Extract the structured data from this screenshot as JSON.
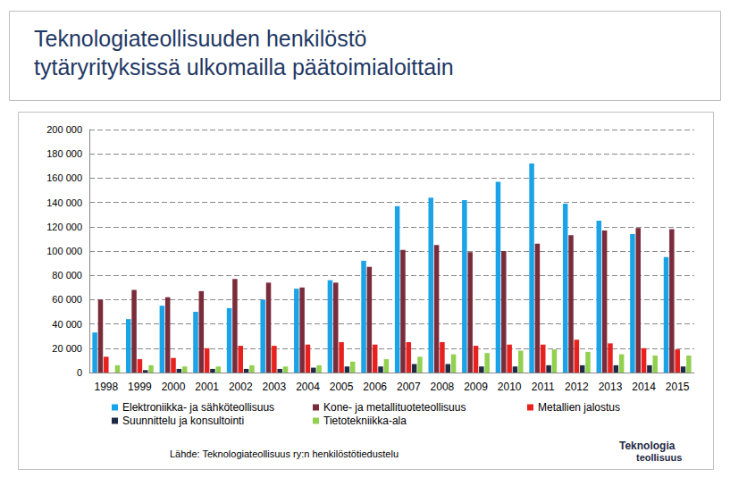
{
  "chart_data": {
    "type": "bar",
    "title": "Teknologiateollisuuden henkilöstö tytäryrityksissä ulkomailla päätoimialoittain",
    "source": "Lähde: Teknologiateollisuus ry:n henkilöstötiedustelu",
    "logo": [
      "Teknologia",
      "teollisuus"
    ],
    "categories": [
      "1998",
      "1999",
      "2000",
      "2001",
      "2002",
      "2003",
      "2004",
      "2005",
      "2006",
      "2007",
      "2008",
      "2009",
      "2010",
      "2011",
      "2012",
      "2013",
      "2014",
      "2015"
    ],
    "series": [
      {
        "name": "Elektroniikka- ja sähköteollisuus",
        "color": "#1aa3e6",
        "values": [
          33000,
          44000,
          55000,
          50000,
          53000,
          60000,
          69000,
          76000,
          92000,
          137000,
          144000,
          142000,
          157000,
          172000,
          139000,
          125000,
          114000,
          95000
        ]
      },
      {
        "name": "Kone- ja metallituoteteollisuus",
        "color": "#7b2c3a",
        "values": [
          60000,
          68000,
          62000,
          67000,
          77000,
          74000,
          70000,
          74000,
          87000,
          101000,
          105000,
          99000,
          100000,
          106000,
          113000,
          117000,
          119000,
          118000
        ]
      },
      {
        "name": "Metallien jalostus",
        "color": "#e8201e",
        "values": [
          13000,
          11000,
          12000,
          20000,
          22000,
          22000,
          23000,
          25000,
          23000,
          25000,
          25000,
          22000,
          23000,
          23000,
          27000,
          24000,
          20000,
          19000
        ]
      },
      {
        "name": "Suunnittelu ja konsultointi",
        "color": "#1f2a44",
        "values": [
          null,
          2000,
          3000,
          3000,
          3000,
          3000,
          4000,
          5000,
          5000,
          7000,
          7000,
          5000,
          5000,
          6000,
          6000,
          6000,
          6000,
          5000
        ]
      },
      {
        "name": "Tietotekniikka-ala",
        "color": "#92d050",
        "values": [
          6000,
          6000,
          5000,
          5000,
          6000,
          5000,
          6000,
          9000,
          11000,
          13000,
          15000,
          16000,
          18000,
          19000,
          17000,
          15000,
          14000,
          14000
        ]
      }
    ],
    "ylim": [
      0,
      200000
    ],
    "yticks": [
      0,
      {
        "value": 20000,
        "label": "20 000"
      },
      {
        "value": 40000,
        "label": "40 000"
      },
      {
        "value": 60000,
        "label": "60 000"
      },
      {
        "value": 80000,
        "label": "80 000"
      },
      {
        "value": 100000,
        "label": "100 000"
      },
      {
        "value": 120000,
        "label": "120 000"
      },
      {
        "value": 140000,
        "label": "140 000"
      },
      {
        "value": 160000,
        "label": "160 000"
      },
      {
        "value": 180000,
        "label": "180 000"
      },
      {
        "value": 200000,
        "label": "200 000"
      }
    ],
    "grid": true,
    "legend": "bottom"
  }
}
